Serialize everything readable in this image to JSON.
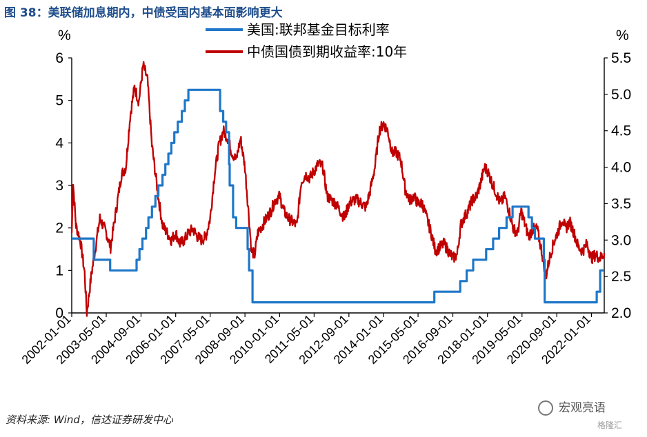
{
  "header": {
    "title": "图 38：美联储加息期内，中债受国内基本面影响更大"
  },
  "footer": {
    "source": "资料来源: Wind，信达证券研发中心"
  },
  "watermark": {
    "text": "宏观亮语",
    "small": "格隆汇"
  },
  "colors": {
    "fed": "#1f77c8",
    "cgb": "#c00000",
    "title": "#1f4e8c"
  },
  "chart_data": {
    "type": "line",
    "left_axis": {
      "unit": "%",
      "min": 0,
      "max": 6,
      "ticks": [
        "0",
        "1",
        "2",
        "3",
        "4",
        "5",
        "6"
      ]
    },
    "right_axis": {
      "unit": "%",
      "min": 2.0,
      "max": 5.5,
      "ticks": [
        "2.0",
        "2.5",
        "3.0",
        "3.5",
        "4.0",
        "4.5",
        "5.0",
        "5.5"
      ]
    },
    "x_ticks": [
      "2002-01-01",
      "2003-05-01",
      "2004-09-01",
      "2006-01-01",
      "2007-05-01",
      "2008-09-01",
      "2010-01-01",
      "2011-05-01",
      "2012-09-01",
      "2014-01-01",
      "2015-05-01",
      "2016-09-01",
      "2018-01-01",
      "2019-05-01",
      "2020-09-01",
      "2022-01-01"
    ],
    "x_range": [
      "2002-01-01",
      "2022-06-30"
    ],
    "series": [
      {
        "name": "美国:联邦基金目标利率",
        "axis": "left",
        "step": true,
        "points": [
          [
            "2002-01-01",
            1.75
          ],
          [
            "2002-11-06",
            1.25
          ],
          [
            "2003-06-25",
            1.0
          ],
          [
            "2004-06-30",
            1.25
          ],
          [
            "2004-08-10",
            1.5
          ],
          [
            "2004-09-21",
            1.75
          ],
          [
            "2004-11-10",
            2.0
          ],
          [
            "2004-12-14",
            2.25
          ],
          [
            "2005-02-02",
            2.5
          ],
          [
            "2005-03-22",
            2.75
          ],
          [
            "2005-05-03",
            3.0
          ],
          [
            "2005-06-30",
            3.25
          ],
          [
            "2005-08-09",
            3.5
          ],
          [
            "2005-09-20",
            3.75
          ],
          [
            "2005-11-01",
            4.0
          ],
          [
            "2005-12-13",
            4.25
          ],
          [
            "2006-01-31",
            4.5
          ],
          [
            "2006-03-28",
            4.75
          ],
          [
            "2006-05-10",
            5.0
          ],
          [
            "2006-06-29",
            5.25
          ],
          [
            "2007-09-18",
            4.75
          ],
          [
            "2007-10-31",
            4.5
          ],
          [
            "2007-12-11",
            4.25
          ],
          [
            "2008-01-22",
            3.5
          ],
          [
            "2008-01-30",
            3.0
          ],
          [
            "2008-03-18",
            2.25
          ],
          [
            "2008-04-30",
            2.0
          ],
          [
            "2008-10-08",
            1.5
          ],
          [
            "2008-10-29",
            1.0
          ],
          [
            "2008-12-16",
            0.25
          ],
          [
            "2015-12-16",
            0.5
          ],
          [
            "2016-12-14",
            0.75
          ],
          [
            "2017-03-15",
            1.0
          ],
          [
            "2017-06-14",
            1.25
          ],
          [
            "2017-12-13",
            1.5
          ],
          [
            "2018-03-21",
            1.75
          ],
          [
            "2018-06-13",
            2.0
          ],
          [
            "2018-09-26",
            2.25
          ],
          [
            "2018-12-19",
            2.5
          ],
          [
            "2019-07-31",
            2.25
          ],
          [
            "2019-09-18",
            2.0
          ],
          [
            "2019-10-30",
            1.75
          ],
          [
            "2020-03-03",
            1.25
          ],
          [
            "2020-03-15",
            0.25
          ],
          [
            "2022-03-16",
            0.5
          ],
          [
            "2022-05-04",
            1.0
          ],
          [
            "2022-06-30",
            1.0
          ]
        ]
      },
      {
        "name": "中债国债到期收益率:10年",
        "axis": "right",
        "step": false,
        "points": [
          [
            "2002-01-01",
            3.1
          ],
          [
            "2002-01-20",
            3.8
          ],
          [
            "2002-03-01",
            3.2
          ],
          [
            "2002-05-01",
            3.0
          ],
          [
            "2002-07-01",
            2.55
          ],
          [
            "2002-08-01",
            2.0
          ],
          [
            "2002-10-01",
            2.5
          ],
          [
            "2002-12-01",
            2.9
          ],
          [
            "2003-02-01",
            3.3
          ],
          [
            "2003-05-01",
            3.1
          ],
          [
            "2003-07-01",
            2.9
          ],
          [
            "2003-10-01",
            3.5
          ],
          [
            "2003-12-01",
            3.9
          ],
          [
            "2004-02-01",
            4.0
          ],
          [
            "2004-04-01",
            4.7
          ],
          [
            "2004-06-01",
            5.1
          ],
          [
            "2004-08-01",
            4.9
          ],
          [
            "2004-10-01",
            5.4
          ],
          [
            "2004-12-01",
            5.2
          ],
          [
            "2005-02-01",
            4.3
          ],
          [
            "2005-05-01",
            3.6
          ],
          [
            "2005-07-01",
            3.2
          ],
          [
            "2005-09-01",
            3.1
          ],
          [
            "2005-11-01",
            3.0
          ],
          [
            "2006-01-01",
            3.1
          ],
          [
            "2006-03-01",
            2.95
          ],
          [
            "2006-05-01",
            3.0
          ],
          [
            "2006-07-01",
            3.1
          ],
          [
            "2006-09-01",
            3.15
          ],
          [
            "2006-11-01",
            3.05
          ],
          [
            "2007-01-01",
            3.0
          ],
          [
            "2007-03-01",
            3.05
          ],
          [
            "2007-05-01",
            3.3
          ],
          [
            "2007-07-01",
            3.9
          ],
          [
            "2007-09-01",
            4.3
          ],
          [
            "2007-11-01",
            4.5
          ],
          [
            "2008-01-01",
            4.4
          ],
          [
            "2008-03-01",
            4.2
          ],
          [
            "2008-05-01",
            4.1
          ],
          [
            "2008-07-01",
            4.4
          ],
          [
            "2008-09-01",
            4.0
          ],
          [
            "2008-10-20",
            3.4
          ],
          [
            "2008-12-01",
            2.85
          ],
          [
            "2009-01-15",
            2.8
          ],
          [
            "2009-03-01",
            3.1
          ],
          [
            "2009-06-01",
            3.25
          ],
          [
            "2009-09-01",
            3.4
          ],
          [
            "2009-11-01",
            3.55
          ],
          [
            "2010-01-01",
            3.6
          ],
          [
            "2010-03-01",
            3.4
          ],
          [
            "2010-05-01",
            3.3
          ],
          [
            "2010-07-01",
            3.25
          ],
          [
            "2010-09-01",
            3.2
          ],
          [
            "2010-11-01",
            3.8
          ],
          [
            "2011-01-01",
            3.9
          ],
          [
            "2011-03-01",
            3.85
          ],
          [
            "2011-05-01",
            3.95
          ],
          [
            "2011-07-01",
            4.05
          ],
          [
            "2011-09-01",
            4.0
          ],
          [
            "2011-11-01",
            3.6
          ],
          [
            "2012-01-01",
            3.55
          ],
          [
            "2012-03-01",
            3.5
          ],
          [
            "2012-05-01",
            3.4
          ],
          [
            "2012-07-01",
            3.3
          ],
          [
            "2012-09-01",
            3.5
          ],
          [
            "2012-11-01",
            3.55
          ],
          [
            "2013-01-01",
            3.55
          ],
          [
            "2013-03-01",
            3.5
          ],
          [
            "2013-05-01",
            3.45
          ],
          [
            "2013-07-01",
            3.7
          ],
          [
            "2013-09-01",
            4.0
          ],
          [
            "2013-11-01",
            4.5
          ],
          [
            "2014-01-01",
            4.6
          ],
          [
            "2014-03-01",
            4.5
          ],
          [
            "2014-05-01",
            4.2
          ],
          [
            "2014-07-01",
            4.2
          ],
          [
            "2014-09-01",
            4.1
          ],
          [
            "2014-11-01",
            3.7
          ],
          [
            "2015-01-01",
            3.55
          ],
          [
            "2015-03-01",
            3.6
          ],
          [
            "2015-05-01",
            3.5
          ],
          [
            "2015-07-01",
            3.5
          ],
          [
            "2015-09-01",
            3.3
          ],
          [
            "2015-11-01",
            3.1
          ],
          [
            "2016-01-01",
            2.85
          ],
          [
            "2016-03-01",
            2.9
          ],
          [
            "2016-05-01",
            2.95
          ],
          [
            "2016-07-01",
            2.85
          ],
          [
            "2016-09-01",
            2.75
          ],
          [
            "2016-11-01",
            2.8
          ],
          [
            "2016-12-20",
            3.2
          ],
          [
            "2017-02-01",
            3.3
          ],
          [
            "2017-04-01",
            3.4
          ],
          [
            "2017-06-01",
            3.55
          ],
          [
            "2017-08-01",
            3.6
          ],
          [
            "2017-10-01",
            3.8
          ],
          [
            "2017-11-20",
            4.0
          ],
          [
            "2018-01-01",
            3.95
          ],
          [
            "2018-03-01",
            3.8
          ],
          [
            "2018-05-01",
            3.65
          ],
          [
            "2018-07-01",
            3.5
          ],
          [
            "2018-09-01",
            3.6
          ],
          [
            "2018-11-01",
            3.4
          ],
          [
            "2019-01-01",
            3.15
          ],
          [
            "2019-03-01",
            3.1
          ],
          [
            "2019-04-20",
            3.4
          ],
          [
            "2019-06-01",
            3.25
          ],
          [
            "2019-08-01",
            3.05
          ],
          [
            "2019-10-01",
            3.15
          ],
          [
            "2019-12-01",
            3.15
          ],
          [
            "2020-02-01",
            2.85
          ],
          [
            "2020-04-01",
            2.5
          ],
          [
            "2020-06-01",
            2.8
          ],
          [
            "2020-08-01",
            3.0
          ],
          [
            "2020-10-01",
            3.15
          ],
          [
            "2020-11-20",
            3.3
          ],
          [
            "2021-01-01",
            3.15
          ],
          [
            "2021-03-01",
            3.25
          ],
          [
            "2021-05-01",
            3.1
          ],
          [
            "2021-07-01",
            2.9
          ],
          [
            "2021-09-01",
            2.85
          ],
          [
            "2021-11-01",
            2.95
          ],
          [
            "2022-01-01",
            2.75
          ],
          [
            "2022-03-01",
            2.8
          ],
          [
            "2022-05-01",
            2.75
          ],
          [
            "2022-06-30",
            2.82
          ]
        ]
      }
    ]
  }
}
